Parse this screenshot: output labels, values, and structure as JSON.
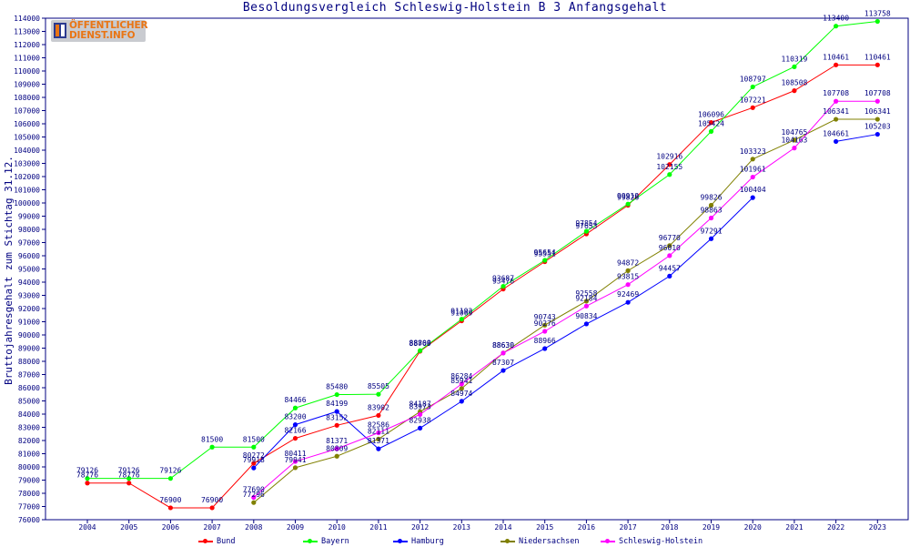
{
  "title": "Besoldungsvergleich Schleswig-Holstein B 3 Anfangsgehalt",
  "logo": {
    "line1": "ÖFFENTLICHER",
    "line2": "DIENST.INFO"
  },
  "chart_data": {
    "type": "line",
    "title": "Besoldungsvergleich Schleswig-Holstein B 3 Anfangsgehalt",
    "xlabel": "",
    "ylabel": "Bruttojahresgehalt zum Stichtag 31.12.",
    "ylim": [
      76000,
      114000
    ],
    "ytick_step": 1000,
    "grid": false,
    "legend_position": "bottom",
    "x": [
      "2004",
      "2005",
      "2006",
      "2007",
      "2008",
      "2009",
      "2010",
      "2011",
      "2012",
      "2013",
      "2014",
      "2015",
      "2016",
      "2017",
      "2018",
      "2019",
      "2020",
      "2021",
      "2022",
      "2023"
    ],
    "series": [
      {
        "name": "Bund",
        "color": "#ff0000",
        "values": [
          78776,
          78776,
          76900,
          76900,
          80272,
          82166,
          83152,
          83902,
          88769,
          91069,
          93476,
          95551,
          97653,
          99826,
          102916,
          106096,
          107221,
          108508,
          110461,
          110461
        ]
      },
      {
        "name": "Bayern",
        "color": "#00ff00",
        "values": [
          79126,
          79126,
          79126,
          81500,
          81500,
          84466,
          85480,
          85505,
          88808,
          91192,
          93687,
          95654,
          97854,
          99919,
          102155,
          105424,
          108797,
          110319,
          113400,
          113758
        ]
      },
      {
        "name": "Hamburg",
        "color": "#0000ff",
        "values": [
          null,
          null,
          null,
          null,
          79918,
          83200,
          84199,
          81371,
          82938,
          84974,
          87307,
          88966,
          90834,
          92469,
          94457,
          97291,
          100404,
          null,
          104661,
          105203
        ]
      },
      {
        "name": "Niedersachsen",
        "color": "#808000",
        "values": [
          null,
          null,
          null,
          null,
          77296,
          79941,
          80809,
          82111,
          84187,
          85941,
          88630,
          90743,
          92558,
          94872,
          96770,
          99826,
          103323,
          104765,
          106341,
          106341
        ]
      },
      {
        "name": "Schleswig-Holstein",
        "color": "#ff00ff",
        "values": [
          null,
          null,
          null,
          null,
          77690,
          80411,
          81371,
          82586,
          83973,
          86284,
          88630,
          90276,
          92184,
          93815,
          96010,
          98863,
          101961,
          104163,
          107708,
          107708
        ]
      }
    ]
  }
}
